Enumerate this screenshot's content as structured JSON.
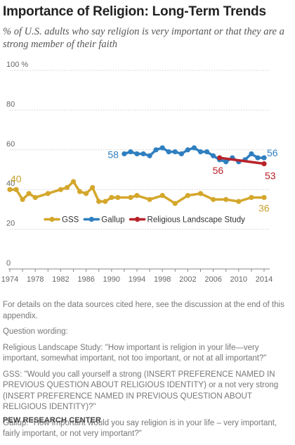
{
  "title": "Importance of Religion: Long-Term Trends",
  "subtitle": "% of U.S. adults who say religion is very important or that they are a strong member of their faith",
  "chart_data": {
    "type": "line",
    "y_ticks": [
      "100 %",
      "80",
      "60",
      "40",
      "20",
      "0"
    ],
    "x_ticks": [
      "1974",
      "1978",
      "1982",
      "1986",
      "1990",
      "1994",
      "1998",
      "2002",
      "2006",
      "2010",
      "2014"
    ],
    "ylim": [
      0,
      100
    ],
    "xlim": [
      1974,
      2014
    ],
    "legend": {
      "placement": "middle",
      "entries": [
        "GSS",
        "Gallup",
        "Religious Landscape Study"
      ]
    },
    "series": [
      {
        "name": "GSS",
        "color": "#d4a72c",
        "x": [
          1974,
          1975,
          1976,
          1977,
          1978,
          1980,
          1982,
          1983,
          1984,
          1985,
          1986,
          1987,
          1988,
          1989,
          1990,
          1991,
          1993,
          1994,
          1996,
          1998,
          2000,
          2002,
          2004,
          2006,
          2008,
          2010,
          2012,
          2014
        ],
        "y": [
          40,
          40,
          35,
          38,
          36,
          38,
          40,
          41,
          44,
          39,
          38,
          41,
          34,
          34,
          36,
          36,
          36,
          37,
          35,
          37,
          33,
          37,
          38,
          35,
          35,
          34,
          36,
          36
        ],
        "start_label": "40",
        "end_label": "36"
      },
      {
        "name": "Gallup",
        "color": "#2e7fc0",
        "x": [
          1992,
          1993,
          1994,
          1995,
          1996,
          1997,
          1998,
          1999,
          2000,
          2001,
          2002,
          2003,
          2004,
          2005,
          2006,
          2007,
          2008,
          2009,
          2010,
          2011,
          2012,
          2013,
          2014
        ],
        "y": [
          58,
          59,
          58,
          58,
          57,
          60,
          61,
          59,
          59,
          58,
          60,
          61,
          59,
          59,
          57,
          55,
          54,
          56,
          54,
          55,
          58,
          56,
          56
        ],
        "start_label": "58",
        "end_label": "56"
      },
      {
        "name": "Religious Landscape Study",
        "color": "#b8232a",
        "x": [
          2007,
          2014
        ],
        "y": [
          56,
          53
        ],
        "start_label": "56",
        "end_label": "53"
      }
    ]
  },
  "notes": {
    "details": "For details on the data sources cited here, see the discussion at the end of this appendix.",
    "wording_header": "Question wording:",
    "rls": "Religious Landscape Study: \"How important is religion in your life—very important, somewhat important, not too important, or not at all important?\"",
    "gss": "GSS: \"Would you call yourself a strong (INSERT PREFERENCE NAMED IN PREVIOUS QUESTION ABOUT RELIGIOUS IDENTITY) or a not very strong (INSERT PREFERENCE NAMED IN PREVIOUS QUESTION ABOUT RELIGIOUS IDENTITY)?\"",
    "gallup": "Gallup: \"How important would you say religion is in your life – very important, fairly important, or not very important?\""
  },
  "source": "PEW RESEARCH CENTER"
}
